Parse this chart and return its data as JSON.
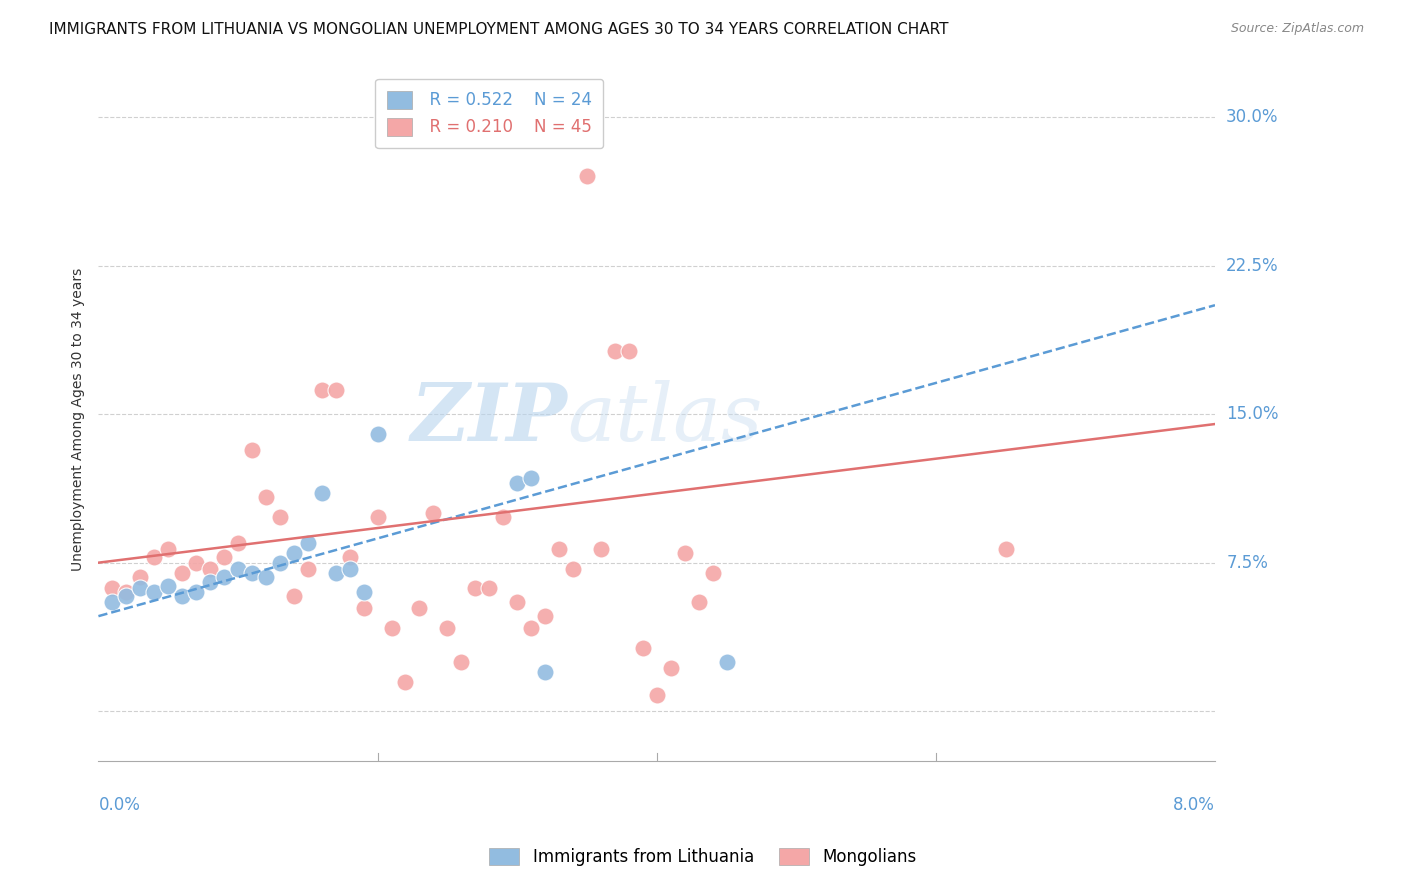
{
  "title": "IMMIGRANTS FROM LITHUANIA VS MONGOLIAN UNEMPLOYMENT AMONG AGES 30 TO 34 YEARS CORRELATION CHART",
  "source": "Source: ZipAtlas.com",
  "ylabel": "Unemployment Among Ages 30 to 34 years",
  "ytick_values": [
    0.0,
    0.075,
    0.15,
    0.225,
    0.3
  ],
  "ytick_labels": [
    "",
    "7.5%",
    "15.0%",
    "22.5%",
    "30.0%"
  ],
  "xmin": 0.0,
  "xmax": 0.08,
  "ymin": -0.025,
  "ymax": 0.32,
  "legend_r1": "R = 0.522",
  "legend_n1": "N = 24",
  "legend_r2": "R = 0.210",
  "legend_n2": "N = 45",
  "blue_color": "#92bce0",
  "pink_color": "#f4a7a7",
  "trend_blue_color": "#5b9bd5",
  "trend_pink_color": "#e07070",
  "axis_label_color": "#5b9bd5",
  "background_color": "#ffffff",
  "watermark_zip": "ZIP",
  "watermark_atlas": "atlas",
  "grid_color": "#d0d0d0",
  "title_fontsize": 11,
  "source_fontsize": 9,
  "blue_trend_x0": 0.0,
  "blue_trend_y0": 0.048,
  "blue_trend_x1": 0.08,
  "blue_trend_y1": 0.205,
  "pink_trend_x0": 0.0,
  "pink_trend_y0": 0.075,
  "pink_trend_x1": 0.08,
  "pink_trend_y1": 0.145,
  "blue_scatter_x": [
    0.001,
    0.002,
    0.003,
    0.004,
    0.005,
    0.006,
    0.007,
    0.008,
    0.009,
    0.01,
    0.011,
    0.012,
    0.013,
    0.014,
    0.015,
    0.016,
    0.017,
    0.018,
    0.019,
    0.02,
    0.03,
    0.031,
    0.032,
    0.045
  ],
  "blue_scatter_y": [
    0.055,
    0.058,
    0.062,
    0.06,
    0.063,
    0.058,
    0.06,
    0.065,
    0.068,
    0.072,
    0.07,
    0.068,
    0.075,
    0.08,
    0.085,
    0.11,
    0.07,
    0.072,
    0.06,
    0.14,
    0.115,
    0.118,
    0.02,
    0.025
  ],
  "pink_scatter_x": [
    0.001,
    0.002,
    0.003,
    0.004,
    0.005,
    0.006,
    0.007,
    0.008,
    0.009,
    0.01,
    0.011,
    0.012,
    0.013,
    0.014,
    0.015,
    0.016,
    0.017,
    0.018,
    0.019,
    0.02,
    0.021,
    0.022,
    0.023,
    0.024,
    0.025,
    0.026,
    0.027,
    0.028,
    0.029,
    0.03,
    0.031,
    0.032,
    0.033,
    0.034,
    0.035,
    0.036,
    0.037,
    0.038,
    0.039,
    0.04,
    0.041,
    0.042,
    0.043,
    0.044,
    0.065
  ],
  "pink_scatter_y": [
    0.062,
    0.06,
    0.068,
    0.078,
    0.082,
    0.07,
    0.075,
    0.072,
    0.078,
    0.085,
    0.132,
    0.108,
    0.098,
    0.058,
    0.072,
    0.162,
    0.162,
    0.078,
    0.052,
    0.098,
    0.042,
    0.015,
    0.052,
    0.1,
    0.042,
    0.025,
    0.062,
    0.062,
    0.098,
    0.055,
    0.042,
    0.048,
    0.082,
    0.072,
    0.27,
    0.082,
    0.182,
    0.182,
    0.032,
    0.008,
    0.022,
    0.08,
    0.055,
    0.07,
    0.082
  ]
}
